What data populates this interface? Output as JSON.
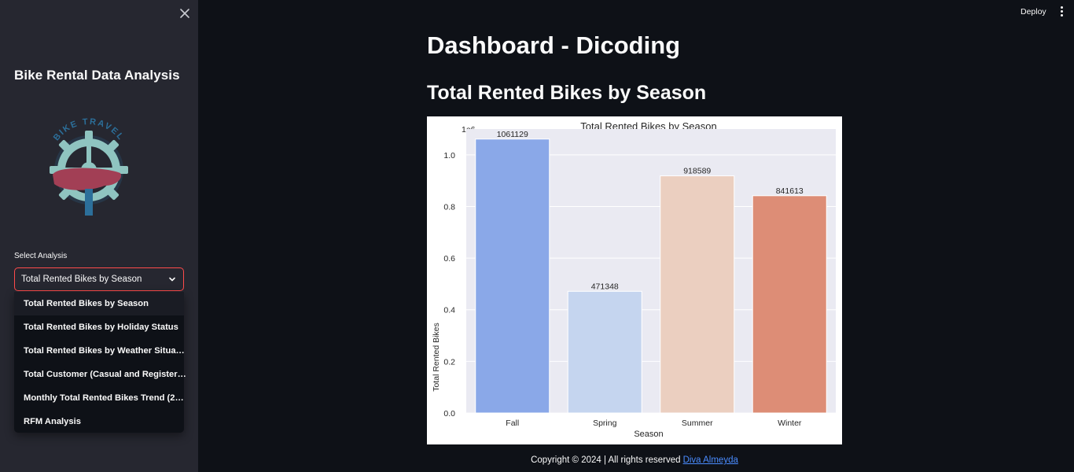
{
  "sidebar": {
    "close_icon": "close-icon",
    "title": "Bike Rental Data Analysis",
    "logo_text": "BIKE TRAVEL",
    "select": {
      "label": "Select Analysis",
      "value": "Total Rented Bikes by Season",
      "icon": "chevron-down-icon",
      "options": [
        "Total Rented Bikes by Season",
        "Total Rented Bikes by Holiday Status",
        "Total Rented Bikes by Weather Situa…",
        "Total Customer (Casual and Register…",
        "Monthly Total Rented Bikes Trend (2…",
        "RFM Analysis"
      ]
    }
  },
  "header": {
    "deploy_label": "Deploy",
    "menu_icon": "more-vertical-icon"
  },
  "main": {
    "page_title": "Dashboard - Dicoding",
    "section_title": "Total Rented Bikes by Season"
  },
  "chart_data": {
    "type": "bar",
    "title": "Total Rented Bikes by Season",
    "xlabel": "Season",
    "ylabel": "Total Rented Bikes",
    "scale_label": "1e6",
    "categories": [
      "Fall",
      "Spring",
      "Summer",
      "Winter"
    ],
    "values": [
      1061129,
      471348,
      918589,
      841613
    ],
    "data_labels": [
      "1061129",
      "471348",
      "918589",
      "841613"
    ],
    "colors": [
      "#8aa8e8",
      "#c5d5ef",
      "#ebcfc0",
      "#dd8d76"
    ],
    "ylim": [
      0,
      1.1
    ],
    "yticks": [
      "0.0",
      "0.2",
      "0.4",
      "0.6",
      "0.8",
      "1.0"
    ],
    "ytick_values": [
      0,
      0.2,
      0.4,
      0.6,
      0.8,
      1.0
    ],
    "grid": true,
    "background": "#eaeaf2"
  },
  "footer": {
    "text": "Copyright © 2024 | All rights reserved",
    "link_text": "Diva Almeyda"
  }
}
